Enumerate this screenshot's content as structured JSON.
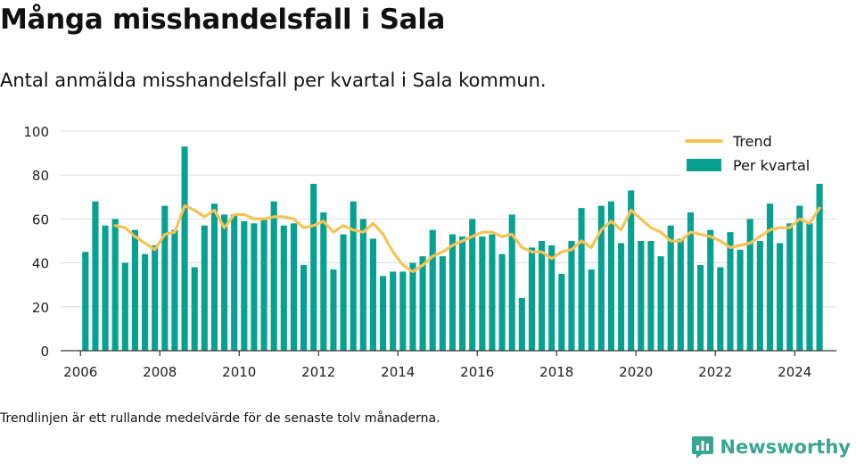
{
  "header": {
    "title": "Många misshandelsfall i Sala",
    "subtitle": "Antal anmälda misshandelsfall per kvartal i Sala kommun."
  },
  "footer": {
    "note": "Trendlinjen är ett rullande medelvärde för de senaste tolv månaderna.",
    "brand": "Newsworthy"
  },
  "colors": {
    "bars": "#07a192",
    "trend": "#f6c355",
    "grid": "#dddddd",
    "brand": "#3aa68f"
  },
  "chart_data": {
    "type": "bar",
    "title": "Många misshandelsfall i Sala",
    "subtitle": "Antal anmälda misshandelsfall per kvartal i Sala kommun.",
    "xlabel": "",
    "ylabel": "",
    "ylim": [
      0,
      100
    ],
    "yticks": [
      0,
      20,
      40,
      60,
      80,
      100
    ],
    "xlim": [
      2005.5,
      2025.05
    ],
    "xticks": [
      2006,
      2008,
      2010,
      2012,
      2014,
      2016,
      2018,
      2020,
      2022,
      2024
    ],
    "grid": true,
    "legend_position": "top-right",
    "series": [
      {
        "name": "Per kvartal",
        "kind": "bar",
        "start_year": 2006,
        "period": "quarter",
        "values": [
          45,
          68,
          57,
          60,
          40,
          55,
          44,
          48,
          66,
          55,
          93,
          38,
          57,
          67,
          62,
          62,
          59,
          58,
          60,
          68,
          57,
          58,
          39,
          76,
          63,
          37,
          53,
          68,
          60,
          51,
          34,
          36,
          36,
          40,
          43,
          55,
          43,
          53,
          52,
          60,
          52,
          53,
          44,
          62,
          24,
          47,
          50,
          48,
          35,
          50,
          65,
          37,
          66,
          68,
          49,
          73,
          50,
          50,
          43,
          57,
          51,
          63,
          39,
          55,
          38,
          54,
          46,
          60,
          50,
          67,
          49,
          58,
          66,
          58,
          76
        ]
      },
      {
        "name": "Trend",
        "kind": "line",
        "start_year": 2006,
        "period": "quarter",
        "values": [
          null,
          null,
          null,
          57,
          56,
          52,
          49,
          46,
          53,
          54,
          66,
          64,
          61,
          64,
          56,
          62,
          62,
          60,
          60,
          61,
          61,
          60,
          56,
          57,
          59,
          54,
          57,
          55,
          54,
          58,
          53,
          45,
          39,
          36,
          39,
          43,
          45,
          48,
          50,
          52,
          54,
          54,
          52,
          53,
          47,
          45,
          45,
          42,
          45,
          46,
          50,
          47,
          55,
          59,
          55,
          64,
          60,
          56,
          54,
          50,
          50,
          54,
          53,
          52,
          50,
          47,
          48,
          49,
          52,
          55,
          56,
          56,
          60,
          58,
          65
        ]
      }
    ]
  }
}
